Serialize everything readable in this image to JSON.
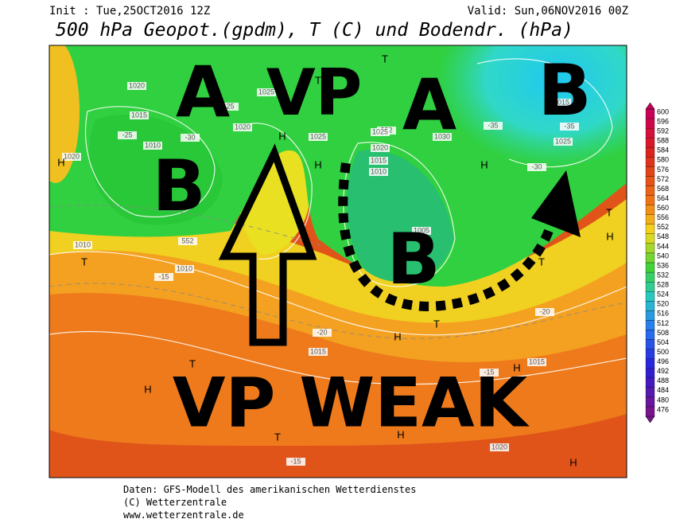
{
  "header": {
    "init": "Init : Tue,25OCT2016 12Z",
    "valid": "Valid: Sun,06NOV2016 00Z",
    "title": "500 hPa Geopot.(gpdm), T (C) und Bodendr. (hPa)"
  },
  "annotations": [
    "A",
    "VP",
    "A",
    "B",
    "B",
    "B",
    "VP WEAK"
  ],
  "map_labels": [
    "1020",
    "1025",
    "1015",
    "1010",
    "1020",
    "552",
    "1025",
    "1025",
    "1020",
    "1015",
    "1010",
    "1030",
    "1015",
    "1025",
    "1020",
    "1010",
    "1010",
    "1015",
    "1015",
    "1020",
    "1005",
    "-25",
    "-25",
    "-30",
    "-35",
    "-35",
    "-30",
    "-15",
    "-20",
    "-15",
    "-15",
    "-20",
    "552"
  ],
  "map_markers": [
    "H",
    "H",
    "H",
    "H",
    "H",
    "H",
    "H",
    "H",
    "H",
    "H",
    "T",
    "T",
    "T",
    "T",
    "T",
    "T",
    "T",
    "T",
    "T"
  ],
  "colorbar": {
    "labels": [
      600,
      596,
      592,
      588,
      584,
      580,
      576,
      572,
      568,
      564,
      560,
      556,
      552,
      548,
      544,
      540,
      536,
      532,
      528,
      524,
      520,
      516,
      512,
      508,
      504,
      500,
      496,
      492,
      488,
      484,
      480,
      476
    ]
  },
  "footer": [
    "Daten: GFS-Modell des amerikanischen Wetterdienstes",
    "(C) Wetterzentrale",
    "www.wetterzentrale.de"
  ]
}
